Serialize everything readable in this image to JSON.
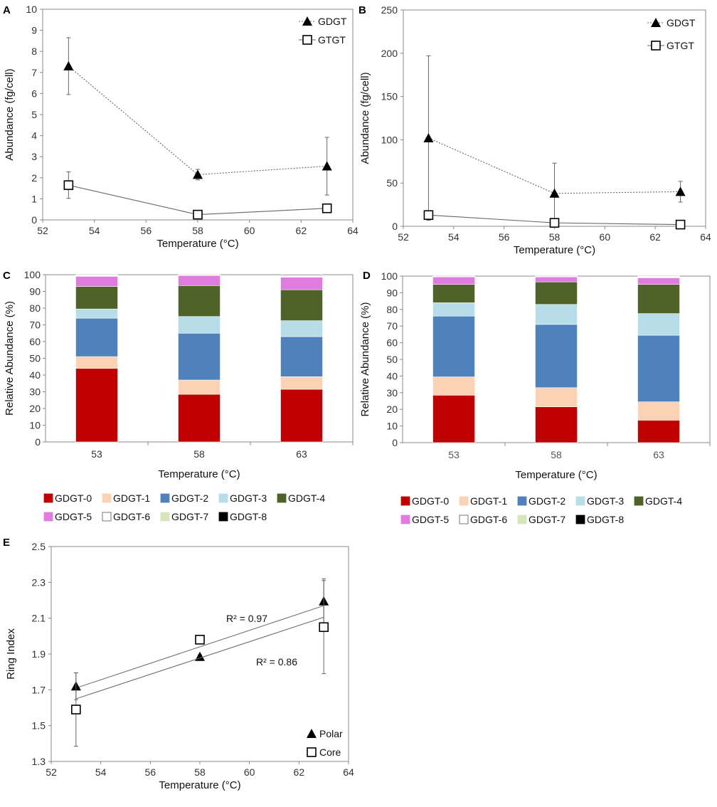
{
  "chart_data": [
    {
      "panel": "A",
      "type": "line",
      "xlabel": "Temperature (°C)",
      "ylabel": "Abundance (fg/cell)",
      "xlim": [
        52,
        64
      ],
      "ylim": [
        0,
        10
      ],
      "xticks": [
        52,
        54,
        56,
        58,
        60,
        62,
        64
      ],
      "yticks": [
        0,
        1,
        2,
        3,
        4,
        5,
        6,
        7,
        8,
        9,
        10
      ],
      "series": [
        {
          "name": "GDGT",
          "marker": "triangle",
          "line": "dotted",
          "x": [
            53,
            58,
            63
          ],
          "y": [
            7.3,
            2.15,
            2.55
          ],
          "err": [
            1.35,
            0.25,
            1.37
          ]
        },
        {
          "name": "GTGT",
          "marker": "square",
          "line": "solid",
          "x": [
            53,
            58,
            63
          ],
          "y": [
            1.65,
            0.25,
            0.55
          ],
          "err": [
            0.63,
            0.1,
            0.1
          ]
        }
      ]
    },
    {
      "panel": "B",
      "type": "line",
      "xlabel": "Temperature (°C)",
      "ylabel": "Abundance (fg/cell)",
      "xlim": [
        52,
        64
      ],
      "ylim": [
        0,
        250
      ],
      "xticks": [
        52,
        54,
        56,
        58,
        60,
        62,
        64
      ],
      "yticks": [
        0,
        50,
        100,
        150,
        200,
        250
      ],
      "series": [
        {
          "name": "GDGT",
          "marker": "triangle",
          "line": "dotted",
          "x": [
            53,
            58,
            63
          ],
          "y": [
            102,
            38,
            40
          ],
          "err": [
            95,
            35,
            12
          ]
        },
        {
          "name": "GTGT",
          "marker": "square",
          "line": "solid",
          "x": [
            53,
            58,
            63
          ],
          "y": [
            13,
            4,
            2
          ],
          "err": [
            0,
            0,
            0
          ]
        }
      ]
    },
    {
      "panel": "C",
      "type": "bar",
      "stacked": true,
      "xlabel": "Temperature (°C)",
      "ylabel": "Relative Abundance (%)",
      "ylim": [
        0,
        100
      ],
      "yticks": [
        0,
        10,
        20,
        30,
        40,
        50,
        60,
        70,
        80,
        90,
        100
      ],
      "categories": [
        "53",
        "58",
        "63"
      ],
      "series": [
        {
          "name": "GDGT-0",
          "color": "#c00000",
          "values": [
            44,
            28.5,
            31.5
          ]
        },
        {
          "name": "GDGT-1",
          "color": "#fbd3b4",
          "values": [
            7,
            8.5,
            7.5
          ]
        },
        {
          "name": "GDGT-2",
          "color": "#4f81bd",
          "values": [
            23,
            28,
            24
          ]
        },
        {
          "name": "GDGT-3",
          "color": "#b7dde8",
          "values": [
            5.5,
            10,
            9.5
          ]
        },
        {
          "name": "GDGT-4",
          "color": "#4f6228",
          "values": [
            13.5,
            18.5,
            18.5
          ]
        },
        {
          "name": "GDGT-5",
          "color": "#e07be0",
          "values": [
            6,
            6,
            7.5
          ]
        },
        {
          "name": "GDGT-6",
          "color": "#ffffff",
          "values": [
            0.5,
            0.3,
            0.8
          ]
        },
        {
          "name": "GDGT-7",
          "color": "#d7e4bc",
          "values": [
            0.3,
            0.1,
            0.3
          ]
        },
        {
          "name": "GDGT-8",
          "color": "#000000",
          "values": [
            0.2,
            0.1,
            0.4
          ]
        }
      ]
    },
    {
      "panel": "D",
      "type": "bar",
      "stacked": true,
      "xlabel": "Temperature (°C)",
      "ylabel": "Relative Abundance (%)",
      "ylim": [
        0,
        100
      ],
      "yticks": [
        0,
        10,
        20,
        30,
        40,
        50,
        60,
        70,
        80,
        90,
        100
      ],
      "categories": [
        "53",
        "58",
        "63"
      ],
      "series": [
        {
          "name": "GDGT-0",
          "color": "#c00000",
          "values": [
            28.5,
            21.5,
            13.5
          ]
        },
        {
          "name": "GDGT-1",
          "color": "#fbd3b4",
          "values": [
            11,
            11.5,
            11
          ]
        },
        {
          "name": "GDGT-2",
          "color": "#4f81bd",
          "values": [
            36.5,
            38,
            40
          ]
        },
        {
          "name": "GDGT-3",
          "color": "#b7dde8",
          "values": [
            8,
            12,
            13
          ]
        },
        {
          "name": "GDGT-4",
          "color": "#4f6228",
          "values": [
            11,
            13.5,
            17.5
          ]
        },
        {
          "name": "GDGT-5",
          "color": "#e07be0",
          "values": [
            4.5,
            3,
            4
          ]
        },
        {
          "name": "GDGT-6",
          "color": "#ffffff",
          "values": [
            0.3,
            0.3,
            0.5
          ]
        },
        {
          "name": "GDGT-7",
          "color": "#d7e4bc",
          "values": [
            0.1,
            0.1,
            0.3
          ]
        },
        {
          "name": "GDGT-8",
          "color": "#000000",
          "values": [
            0.1,
            0.1,
            0.2
          ]
        }
      ]
    },
    {
      "panel": "E",
      "type": "scatter",
      "xlabel": "Temperature (°C)",
      "ylabel": "Ring Index",
      "xlim": [
        52,
        64
      ],
      "ylim": [
        1.3,
        2.5
      ],
      "xticks": [
        52,
        54,
        56,
        58,
        60,
        62,
        64
      ],
      "yticks": [
        1.3,
        1.5,
        1.7,
        1.9,
        2.1,
        2.3,
        2.5
      ],
      "series": [
        {
          "name": "Polar",
          "marker": "triangle",
          "x": [
            53,
            58,
            63
          ],
          "y": [
            1.72,
            1.885,
            2.195
          ],
          "err": [
            0.075,
            0.01,
            0.125
          ],
          "trend": {
            "y_at": [
              [
                53,
                1.71
              ],
              [
                63,
                2.17
              ]
            ],
            "r2_label": "R² = 0.97"
          }
        },
        {
          "name": "Core",
          "marker": "square",
          "x": [
            53,
            58,
            63
          ],
          "y": [
            1.59,
            1.98,
            2.05
          ],
          "err": [
            0.205,
            0.0,
            0.26
          ],
          "trend": {
            "y_at": [
              [
                53,
                1.65
              ],
              [
                63,
                2.105
              ]
            ],
            "r2_label": "R² = 0.86"
          }
        }
      ]
    }
  ]
}
